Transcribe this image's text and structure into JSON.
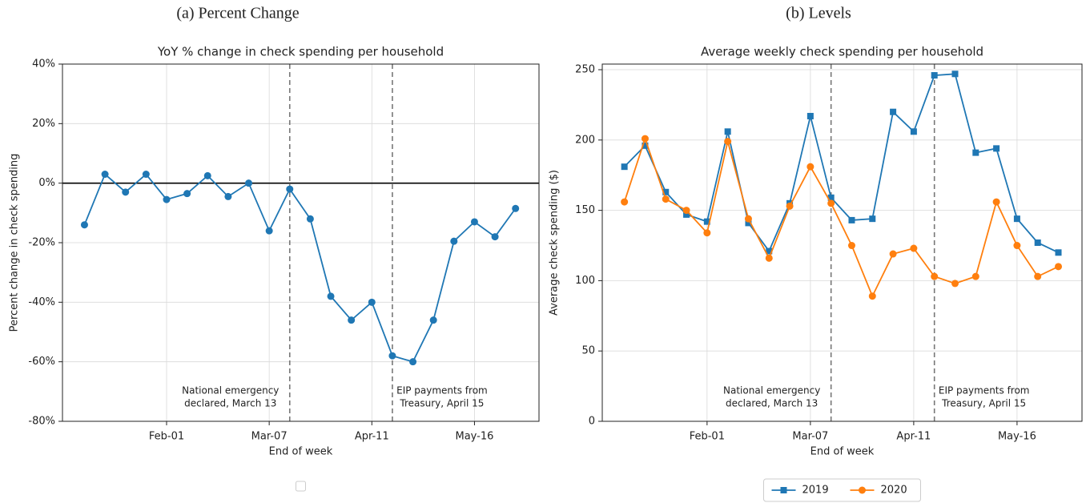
{
  "chart_data": [
    {
      "type": "line",
      "panel_title": "(a) Percent Change",
      "title": "YoY % change in check spending per household",
      "xlabel": "End of week",
      "ylabel": "Percent change in check spending",
      "x": [
        4,
        11,
        18,
        25,
        32,
        39,
        46,
        53,
        60,
        67,
        74,
        81,
        88,
        95,
        102,
        109,
        116,
        123,
        130,
        137,
        144,
        151
      ],
      "xlim": [
        -3.5,
        159
      ],
      "xticks": [
        {
          "value": 32,
          "label": "Feb-01"
        },
        {
          "value": 67,
          "label": "Mar-07"
        },
        {
          "value": 102,
          "label": "Apr-11"
        },
        {
          "value": 137,
          "label": "May-16"
        }
      ],
      "ylim": [
        -80,
        40
      ],
      "yticks": [
        {
          "value": 40,
          "label": "40%"
        },
        {
          "value": 20,
          "label": "20%"
        },
        {
          "value": 0,
          "label": "0%"
        },
        {
          "value": -20,
          "label": "-20%"
        },
        {
          "value": -40,
          "label": "-40%"
        },
        {
          "value": -60,
          "label": "-60%"
        },
        {
          "value": -80,
          "label": "-80%"
        }
      ],
      "grid": true,
      "zero_line": true,
      "legend": "lower center",
      "series": [
        {
          "color": "#1f77b4",
          "marker": "circle",
          "values": [
            -14,
            3,
            -3,
            3,
            -5.5,
            -3.5,
            2.5,
            -4.5,
            0,
            -16,
            -2,
            -12,
            -38,
            -46,
            -40,
            -58,
            -60,
            -46,
            -19.5,
            -13,
            -18,
            -8.5
          ]
        }
      ],
      "annotations": [
        {
          "x": 74,
          "side": "left",
          "text": [
            "National emergency",
            "declared, March 13"
          ]
        },
        {
          "x": 109,
          "side": "right",
          "text": [
            "EIP payments from",
            "Treasury, April 15"
          ]
        }
      ]
    },
    {
      "type": "line",
      "panel_title": "(b) Levels",
      "title": "Average weekly check spending per household",
      "xlabel": "End of week",
      "ylabel": "Average check spending ($)",
      "x": [
        4,
        11,
        18,
        25,
        32,
        39,
        46,
        53,
        60,
        67,
        74,
        81,
        88,
        95,
        102,
        109,
        116,
        123,
        130,
        137,
        144,
        151
      ],
      "xlim": [
        -3.5,
        159
      ],
      "xticks": [
        {
          "value": 32,
          "label": "Feb-01"
        },
        {
          "value": 67,
          "label": "Mar-07"
        },
        {
          "value": 102,
          "label": "Apr-11"
        },
        {
          "value": 137,
          "label": "May-16"
        }
      ],
      "ylim": [
        0,
        254
      ],
      "yticks": [
        0,
        50,
        100,
        150,
        200,
        250
      ],
      "grid": true,
      "zero_line": false,
      "legend": "lower center",
      "series": [
        {
          "name": "2019",
          "color": "#1f77b4",
          "marker": "square",
          "values": [
            181,
            196,
            163,
            147,
            142,
            206,
            141,
            121,
            155,
            217,
            159,
            143,
            144,
            220,
            206,
            246,
            247,
            191,
            194,
            144,
            127,
            120
          ]
        },
        {
          "name": "2020",
          "color": "#ff7f0e",
          "marker": "circle",
          "values": [
            156,
            201,
            158,
            150,
            134,
            199,
            144,
            116,
            153,
            181,
            155,
            125,
            89,
            119,
            123,
            103,
            98,
            103,
            156,
            125,
            103,
            110
          ]
        }
      ],
      "annotations": [
        {
          "x": 74,
          "side": "left",
          "text": [
            "National emergency",
            "declared, March 13"
          ]
        },
        {
          "x": 109,
          "side": "right",
          "text": [
            "EIP payments from",
            "Treasury, April 15"
          ]
        }
      ]
    }
  ]
}
